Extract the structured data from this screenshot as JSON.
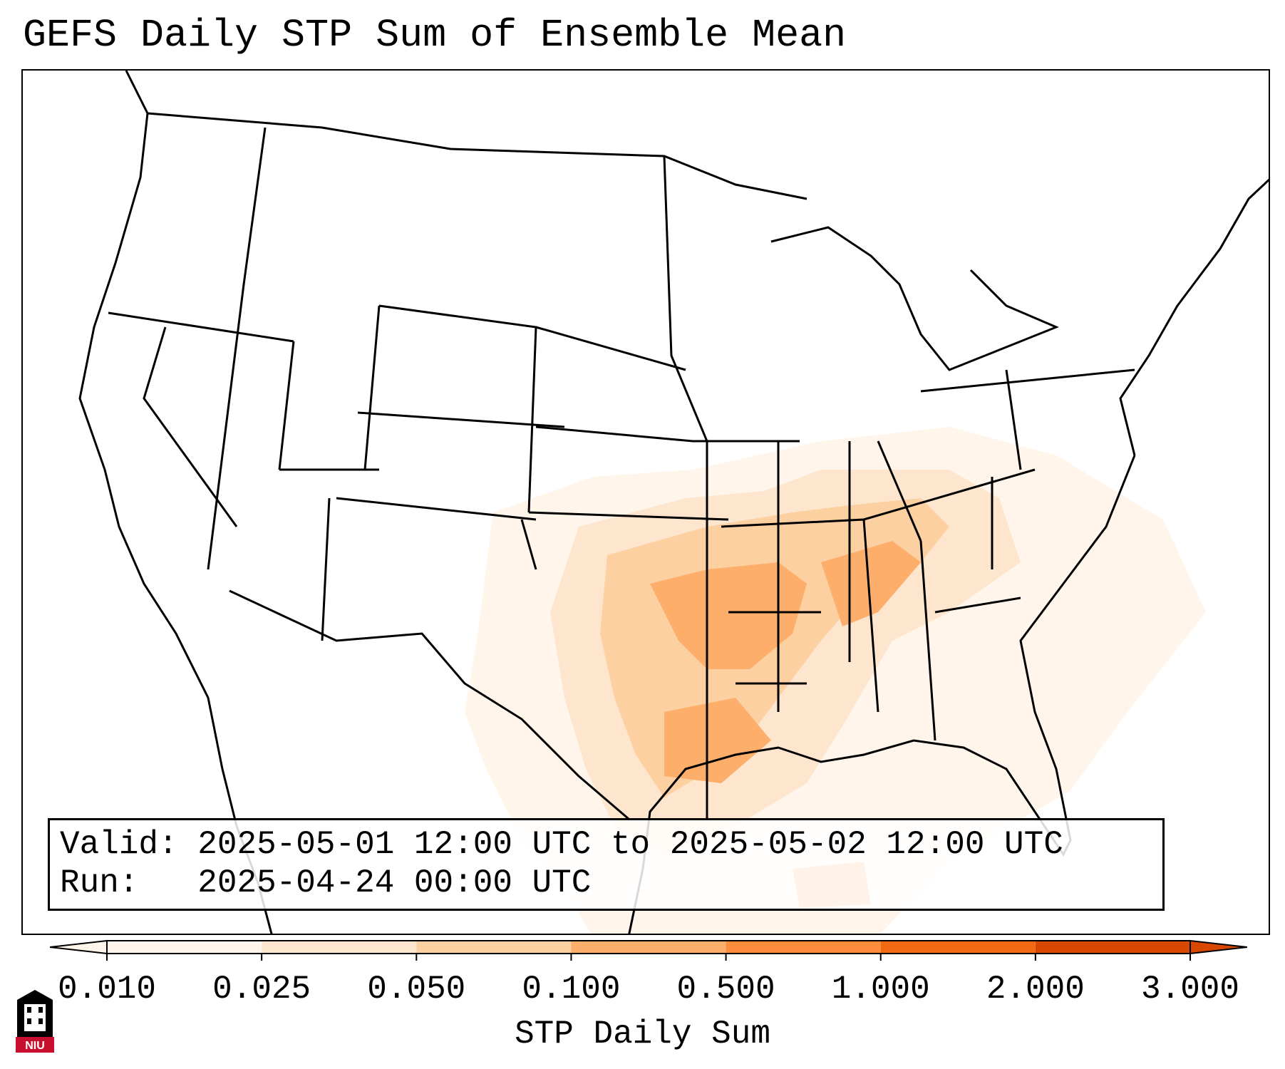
{
  "title": "GEFS Daily STP Sum of Ensemble Mean",
  "map": {
    "region": "Continental United States",
    "boundaries": "state and international borders"
  },
  "info": {
    "valid_label": "Valid:",
    "valid_value": "2025-05-01 12:00 UTC to 2025-05-02 12:00 UTC",
    "run_label": "Run:",
    "run_value": "2025-04-24 00:00 UTC"
  },
  "colorbar": {
    "label": "STP Daily Sum",
    "ticks": [
      "0.010",
      "0.025",
      "0.050",
      "0.100",
      "0.500",
      "1.000",
      "2.000",
      "3.000"
    ],
    "colors": [
      "#fff5eb",
      "#fee6ce",
      "#fdd0a2",
      "#fdae6b",
      "#fd8d3c",
      "#f16913",
      "#d94801"
    ],
    "extend": "both"
  },
  "logo": {
    "text": "NIU",
    "icon": "niu-logo-icon",
    "colors": {
      "primary": "#c8102e",
      "dark": "#000000"
    }
  }
}
